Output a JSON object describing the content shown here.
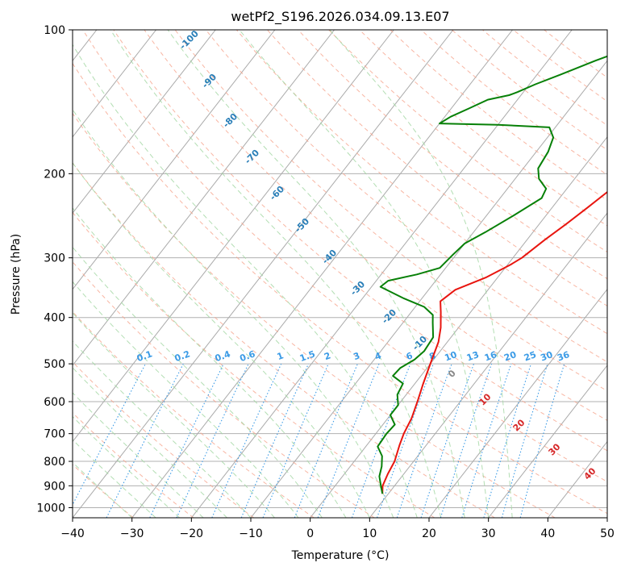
{
  "chart_data": {
    "type": "line",
    "subtype": "skew-T log-p diagram",
    "title": "wetPf2_S196.2026.034.09.13.E07",
    "xlabel": "Temperature (°C)",
    "ylabel": "Pressure (hPa)",
    "xlim": [
      -40,
      50
    ],
    "ylim": [
      1050,
      100
    ],
    "yscale": "log",
    "x_ticks": [
      "−40",
      "−30",
      "−20",
      "−10",
      "0",
      "10",
      "20",
      "30",
      "40",
      "50"
    ],
    "x_tick_values": [
      -40,
      -30,
      -20,
      -10,
      0,
      10,
      20,
      30,
      40,
      50
    ],
    "y_ticks": [
      "100",
      "200",
      "300",
      "400",
      "500",
      "600",
      "700",
      "800",
      "900",
      "1000"
    ],
    "y_tick_values": [
      100,
      200,
      300,
      400,
      500,
      600,
      700,
      800,
      900,
      1000
    ],
    "grid": true,
    "series": [
      {
        "role": "temperature",
        "color": "#e8150f",
        "points": [
          [
            9,
            935
          ],
          [
            8,
            900
          ],
          [
            7.3,
            850
          ],
          [
            6.8,
            800
          ],
          [
            5.5,
            740
          ],
          [
            4.7,
            700
          ],
          [
            4,
            650
          ],
          [
            2.8,
            600
          ],
          [
            1.4,
            550
          ],
          [
            0,
            500
          ],
          [
            -1.5,
            450
          ],
          [
            -3,
            420
          ],
          [
            -5,
            390
          ],
          [
            -6.5,
            370
          ],
          [
            -5.5,
            350
          ],
          [
            -2,
            330
          ],
          [
            0.5,
            310
          ],
          [
            1.5,
            300
          ],
          [
            3,
            275
          ],
          [
            4.5,
            255
          ],
          [
            6,
            235
          ],
          [
            7.5,
            215
          ],
          [
            9,
            195
          ],
          [
            10.5,
            178
          ],
          [
            12,
            162
          ],
          [
            13.5,
            148
          ],
          [
            15,
            136
          ],
          [
            16,
            126
          ],
          [
            17.5,
            116
          ],
          [
            18.5,
            108
          ],
          [
            20,
            100
          ]
        ]
      },
      {
        "role": "dewpoint",
        "color": "#078007",
        "points": [
          [
            9,
            935
          ],
          [
            7.7,
            900
          ],
          [
            6.2,
            860
          ],
          [
            5.3,
            820
          ],
          [
            4,
            780
          ],
          [
            2,
            745
          ],
          [
            1.8,
            700
          ],
          [
            2,
            670
          ],
          [
            0,
            640
          ],
          [
            0,
            610
          ],
          [
            -1.5,
            580
          ],
          [
            -2,
            550
          ],
          [
            -4.7,
            530
          ],
          [
            -4.5,
            510
          ],
          [
            -3.2,
            490
          ],
          [
            -2.7,
            470
          ],
          [
            -3,
            440
          ],
          [
            -5,
            410
          ],
          [
            -6,
            395
          ],
          [
            -8.5,
            380
          ],
          [
            -13,
            365
          ],
          [
            -18.5,
            345
          ],
          [
            -18,
            335
          ],
          [
            -14,
            325
          ],
          [
            -11,
            315
          ],
          [
            -10.5,
            295
          ],
          [
            -10,
            280
          ],
          [
            -8,
            265
          ],
          [
            -5.5,
            245
          ],
          [
            -3,
            225
          ],
          [
            -3.5,
            215
          ],
          [
            -6,
            205
          ],
          [
            -7.5,
            195
          ],
          [
            -8,
            180
          ],
          [
            -9,
            168
          ],
          [
            -11,
            160
          ],
          [
            -20,
            158
          ],
          [
            -30,
            157
          ],
          [
            -29,
            152
          ],
          [
            -27,
            146
          ],
          [
            -25,
            140
          ],
          [
            -22,
            137
          ],
          [
            -21,
            135
          ],
          [
            -19,
            130
          ],
          [
            -16,
            124
          ],
          [
            -12,
            116
          ],
          [
            -6,
            106
          ],
          [
            -3,
            100
          ]
        ]
      }
    ],
    "dry_adiabat_labels": [
      "-100",
      "-90",
      "-80",
      "-70",
      "-60",
      "-50",
      "-40",
      "-30",
      "-20",
      "-10"
    ],
    "moist_adiabat_labels": [
      "0",
      "10",
      "20",
      "30",
      "40"
    ],
    "mixing_ratio_labels": [
      "0.1",
      "0.2",
      "0.4",
      "0.6",
      "1",
      "1.5",
      "2",
      "3",
      "4",
      "6",
      "8",
      "10",
      "13",
      "16",
      "20",
      "25",
      "30",
      "36"
    ],
    "colors": {
      "isotherm": "#aaaaaa",
      "isobar": "#b0b0b0",
      "dry_adiabat": "#f6a48c",
      "moist_adiabat": "#a6d8a6",
      "mixing_ratio": "#3b9be6",
      "temperature": "#e8150f",
      "dewpoint": "#078007"
    }
  }
}
